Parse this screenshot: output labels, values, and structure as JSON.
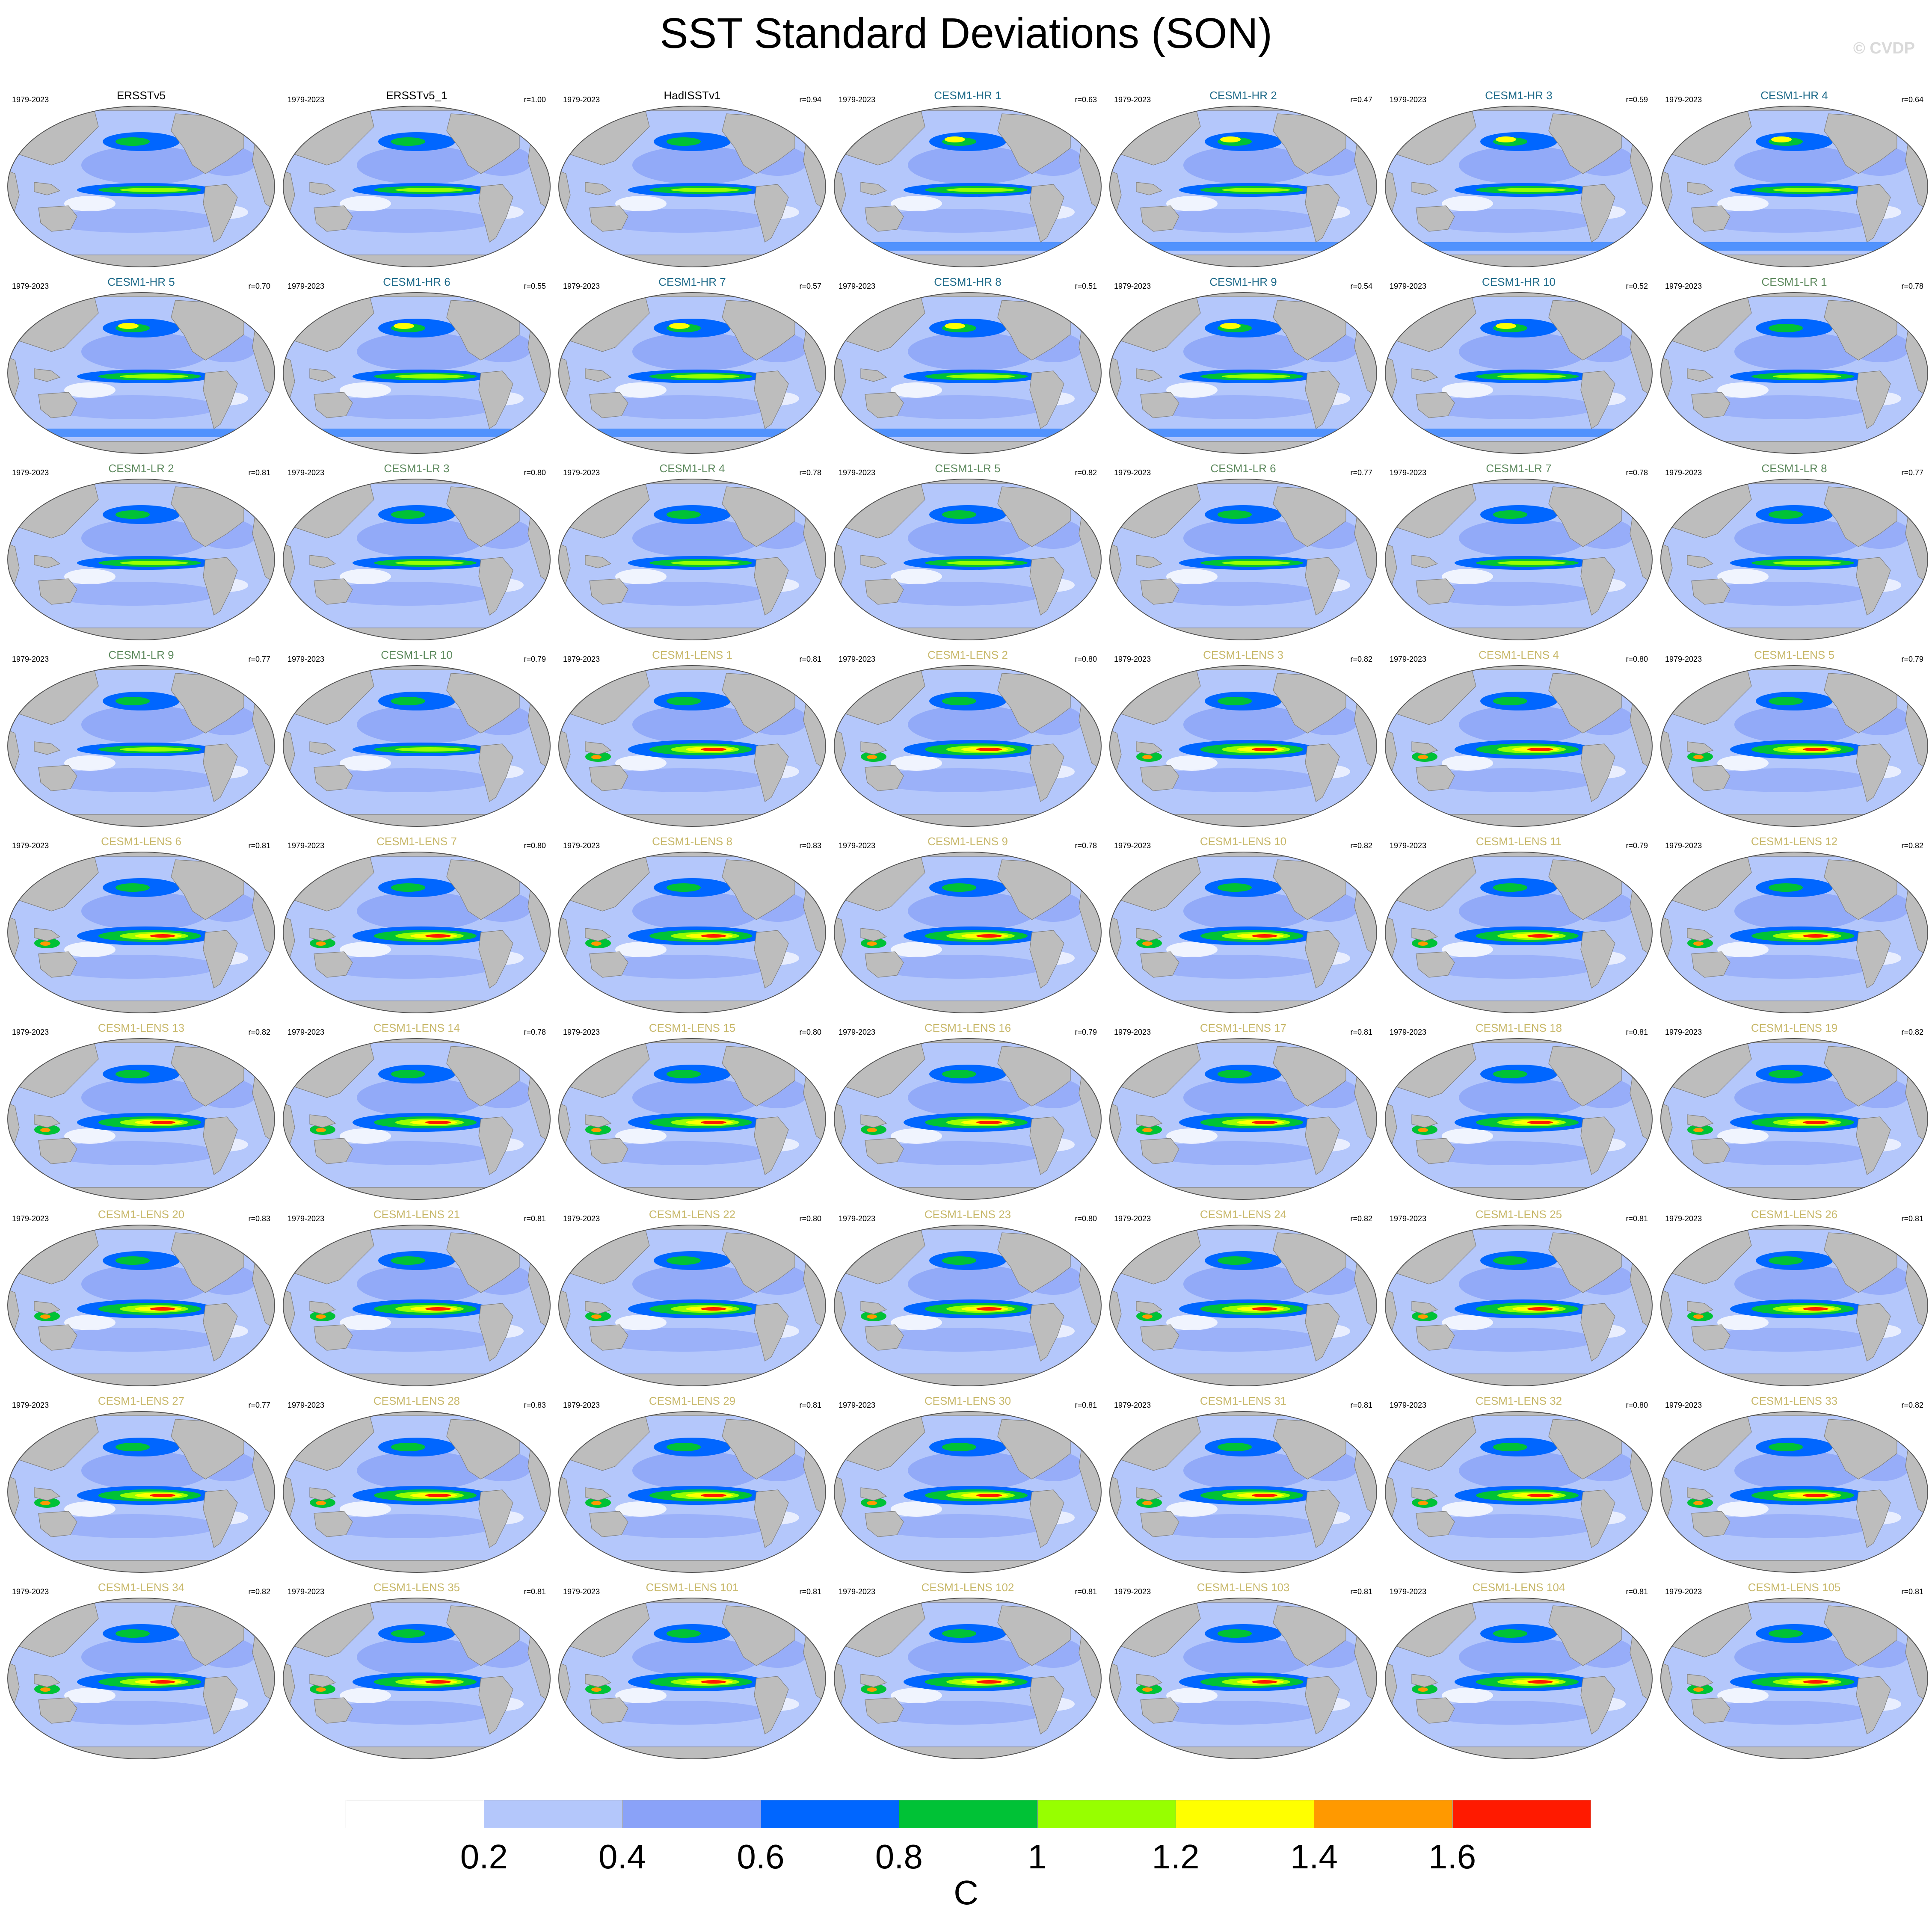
{
  "title": "SST Standard Deviations (SON)",
  "watermark": "© CVDP",
  "panels": [
    {
      "name": "ERSSTv5",
      "years": "1979-2023",
      "r": "",
      "group": "obs"
    },
    {
      "name": "ERSSTv5_1",
      "years": "1979-2023",
      "r": "r=1.00",
      "group": "obs"
    },
    {
      "name": "HadISSTv1",
      "years": "1979-2023",
      "r": "r=0.94",
      "group": "obs"
    },
    {
      "name": "CESM1-HR 1",
      "years": "1979-2023",
      "r": "r=0.63",
      "group": "hr"
    },
    {
      "name": "CESM1-HR 2",
      "years": "1979-2023",
      "r": "r=0.47",
      "group": "hr"
    },
    {
      "name": "CESM1-HR 3",
      "years": "1979-2023",
      "r": "r=0.59",
      "group": "hr"
    },
    {
      "name": "CESM1-HR 4",
      "years": "1979-2023",
      "r": "r=0.64",
      "group": "hr"
    },
    {
      "name": "CESM1-HR 5",
      "years": "1979-2023",
      "r": "r=0.70",
      "group": "hr"
    },
    {
      "name": "CESM1-HR 6",
      "years": "1979-2023",
      "r": "r=0.55",
      "group": "hr"
    },
    {
      "name": "CESM1-HR 7",
      "years": "1979-2023",
      "r": "r=0.57",
      "group": "hr"
    },
    {
      "name": "CESM1-HR 8",
      "years": "1979-2023",
      "r": "r=0.51",
      "group": "hr"
    },
    {
      "name": "CESM1-HR 9",
      "years": "1979-2023",
      "r": "r=0.54",
      "group": "hr"
    },
    {
      "name": "CESM1-HR 10",
      "years": "1979-2023",
      "r": "r=0.52",
      "group": "hr"
    },
    {
      "name": "CESM1-LR 1",
      "years": "1979-2023",
      "r": "r=0.78",
      "group": "lr"
    },
    {
      "name": "CESM1-LR 2",
      "years": "1979-2023",
      "r": "r=0.81",
      "group": "lr"
    },
    {
      "name": "CESM1-LR 3",
      "years": "1979-2023",
      "r": "r=0.80",
      "group": "lr"
    },
    {
      "name": "CESM1-LR 4",
      "years": "1979-2023",
      "r": "r=0.78",
      "group": "lr"
    },
    {
      "name": "CESM1-LR 5",
      "years": "1979-2023",
      "r": "r=0.82",
      "group": "lr"
    },
    {
      "name": "CESM1-LR 6",
      "years": "1979-2023",
      "r": "r=0.77",
      "group": "lr"
    },
    {
      "name": "CESM1-LR 7",
      "years": "1979-2023",
      "r": "r=0.78",
      "group": "lr"
    },
    {
      "name": "CESM1-LR 8",
      "years": "1979-2023",
      "r": "r=0.77",
      "group": "lr"
    },
    {
      "name": "CESM1-LR 9",
      "years": "1979-2023",
      "r": "r=0.77",
      "group": "lr"
    },
    {
      "name": "CESM1-LR 10",
      "years": "1979-2023",
      "r": "r=0.79",
      "group": "lr"
    },
    {
      "name": "CESM1-LENS 1",
      "years": "1979-2023",
      "r": "r=0.81",
      "group": "lens"
    },
    {
      "name": "CESM1-LENS 2",
      "years": "1979-2023",
      "r": "r=0.80",
      "group": "lens"
    },
    {
      "name": "CESM1-LENS 3",
      "years": "1979-2023",
      "r": "r=0.82",
      "group": "lens"
    },
    {
      "name": "CESM1-LENS 4",
      "years": "1979-2023",
      "r": "r=0.80",
      "group": "lens"
    },
    {
      "name": "CESM1-LENS 5",
      "years": "1979-2023",
      "r": "r=0.79",
      "group": "lens"
    },
    {
      "name": "CESM1-LENS 6",
      "years": "1979-2023",
      "r": "r=0.81",
      "group": "lens"
    },
    {
      "name": "CESM1-LENS 7",
      "years": "1979-2023",
      "r": "r=0.80",
      "group": "lens"
    },
    {
      "name": "CESM1-LENS 8",
      "years": "1979-2023",
      "r": "r=0.83",
      "group": "lens"
    },
    {
      "name": "CESM1-LENS 9",
      "years": "1979-2023",
      "r": "r=0.78",
      "group": "lens"
    },
    {
      "name": "CESM1-LENS 10",
      "years": "1979-2023",
      "r": "r=0.82",
      "group": "lens"
    },
    {
      "name": "CESM1-LENS 11",
      "years": "1979-2023",
      "r": "r=0.79",
      "group": "lens"
    },
    {
      "name": "CESM1-LENS 12",
      "years": "1979-2023",
      "r": "r=0.82",
      "group": "lens"
    },
    {
      "name": "CESM1-LENS 13",
      "years": "1979-2023",
      "r": "r=0.82",
      "group": "lens"
    },
    {
      "name": "CESM1-LENS 14",
      "years": "1979-2023",
      "r": "r=0.78",
      "group": "lens"
    },
    {
      "name": "CESM1-LENS 15",
      "years": "1979-2023",
      "r": "r=0.80",
      "group": "lens"
    },
    {
      "name": "CESM1-LENS 16",
      "years": "1979-2023",
      "r": "r=0.79",
      "group": "lens"
    },
    {
      "name": "CESM1-LENS 17",
      "years": "1979-2023",
      "r": "r=0.81",
      "group": "lens"
    },
    {
      "name": "CESM1-LENS 18",
      "years": "1979-2023",
      "r": "r=0.81",
      "group": "lens"
    },
    {
      "name": "CESM1-LENS 19",
      "years": "1979-2023",
      "r": "r=0.82",
      "group": "lens"
    },
    {
      "name": "CESM1-LENS 20",
      "years": "1979-2023",
      "r": "r=0.83",
      "group": "lens"
    },
    {
      "name": "CESM1-LENS 21",
      "years": "1979-2023",
      "r": "r=0.81",
      "group": "lens"
    },
    {
      "name": "CESM1-LENS 22",
      "years": "1979-2023",
      "r": "r=0.80",
      "group": "lens"
    },
    {
      "name": "CESM1-LENS 23",
      "years": "1979-2023",
      "r": "r=0.80",
      "group": "lens"
    },
    {
      "name": "CESM1-LENS 24",
      "years": "1979-2023",
      "r": "r=0.82",
      "group": "lens"
    },
    {
      "name": "CESM1-LENS 25",
      "years": "1979-2023",
      "r": "r=0.81",
      "group": "lens"
    },
    {
      "name": "CESM1-LENS 26",
      "years": "1979-2023",
      "r": "r=0.81",
      "group": "lens"
    },
    {
      "name": "CESM1-LENS 27",
      "years": "1979-2023",
      "r": "r=0.77",
      "group": "lens"
    },
    {
      "name": "CESM1-LENS 28",
      "years": "1979-2023",
      "r": "r=0.83",
      "group": "lens"
    },
    {
      "name": "CESM1-LENS 29",
      "years": "1979-2023",
      "r": "r=0.81",
      "group": "lens"
    },
    {
      "name": "CESM1-LENS 30",
      "years": "1979-2023",
      "r": "r=0.81",
      "group": "lens"
    },
    {
      "name": "CESM1-LENS 31",
      "years": "1979-2023",
      "r": "r=0.81",
      "group": "lens"
    },
    {
      "name": "CESM1-LENS 32",
      "years": "1979-2023",
      "r": "r=0.80",
      "group": "lens"
    },
    {
      "name": "CESM1-LENS 33",
      "years": "1979-2023",
      "r": "r=0.82",
      "group": "lens"
    },
    {
      "name": "CESM1-LENS 34",
      "years": "1979-2023",
      "r": "r=0.82",
      "group": "lens"
    },
    {
      "name": "CESM1-LENS 35",
      "years": "1979-2023",
      "r": "r=0.81",
      "group": "lens"
    },
    {
      "name": "CESM1-LENS 101",
      "years": "1979-2023",
      "r": "r=0.81",
      "group": "lens"
    },
    {
      "name": "CESM1-LENS 102",
      "years": "1979-2023",
      "r": "r=0.81",
      "group": "lens"
    },
    {
      "name": "CESM1-LENS 103",
      "years": "1979-2023",
      "r": "r=0.81",
      "group": "lens"
    },
    {
      "name": "CESM1-LENS 104",
      "years": "1979-2023",
      "r": "r=0.81",
      "group": "lens"
    },
    {
      "name": "CESM1-LENS 105",
      "years": "1979-2023",
      "r": "r=0.81",
      "group": "lens"
    }
  ],
  "label_colors": {
    "obs": "#000000",
    "hr": "#1f6b8a",
    "lr": "#5e8a5e",
    "lens": "#c8b86a"
  },
  "colorbar": {
    "colors": [
      "#ffffff",
      "#b4c7fb",
      "#8aa2f8",
      "#0066ff",
      "#00c236",
      "#97ff00",
      "#ffff00",
      "#ff9900",
      "#ff1a00"
    ],
    "tick_labels": [
      "0.2",
      "0.4",
      "0.6",
      "0.8",
      "1",
      "1.2",
      "1.4",
      "1.6"
    ],
    "unit": "C"
  },
  "map_colors": {
    "land": "#bdbdbd",
    "ocean_base": "#b4c7fb"
  }
}
